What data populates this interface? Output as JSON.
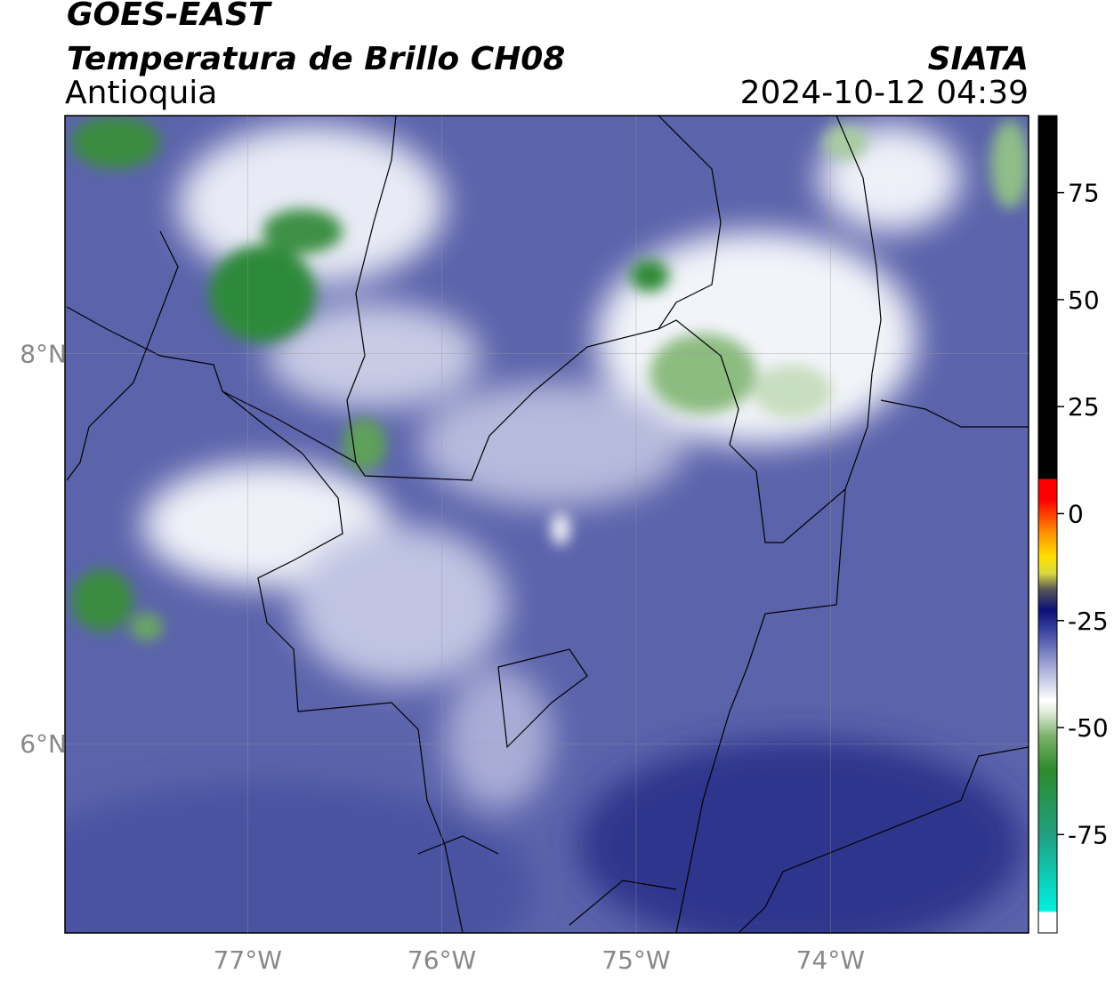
{
  "header": {
    "title": "GOES-EAST",
    "subtitle": "Temperatura de Brillo CH08",
    "region": "Antioquia",
    "source": "SIATA",
    "timestamp": "2024-10-12 04:39"
  },
  "map": {
    "xlim": [
      -77.94,
      -72.98
    ],
    "ylim": [
      5.03,
      9.22
    ],
    "xticks": [
      {
        "value": -77,
        "label": "77°W"
      },
      {
        "value": -76,
        "label": "76°W"
      },
      {
        "value": -75,
        "label": "75°W"
      },
      {
        "value": -74,
        "label": "74°W"
      }
    ],
    "yticks": [
      {
        "value": 8,
        "label": "8°N"
      },
      {
        "value": 6,
        "label": "6°N"
      }
    ]
  },
  "colorbar": {
    "lim": [
      -98,
      93
    ],
    "ticks": [
      75,
      50,
      25,
      0,
      -25,
      -50,
      -75
    ]
  }
}
